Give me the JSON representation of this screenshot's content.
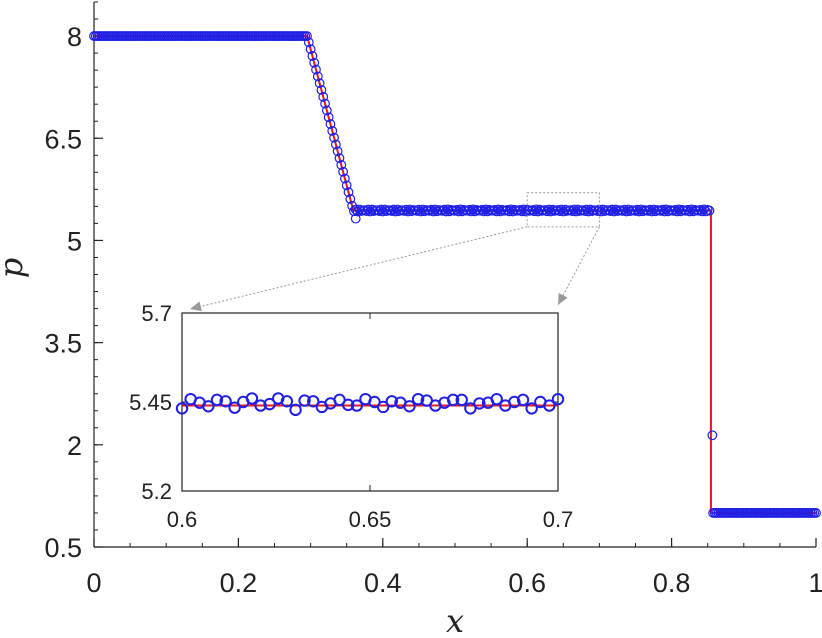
{
  "chart_data": [
    {
      "type": "line",
      "xlabel": "x",
      "ylabel": "p",
      "xlim": [
        0,
        1
      ],
      "ylim": [
        0.5,
        8.5
      ],
      "xticks": [
        0,
        0.2,
        0.4,
        0.6,
        0.8,
        1
      ],
      "xtick_labels": [
        "0",
        "0.2",
        "0.4",
        "0.6",
        "0.8",
        "1"
      ],
      "yticks": [
        0.5,
        2,
        3.5,
        5,
        6.5,
        8
      ],
      "ytick_labels": [
        "0.5",
        "2",
        "3.5",
        "5",
        "6.5",
        "8"
      ],
      "grid": false,
      "colors": {
        "reference": "#e8191f",
        "numerical": "#1f1fe6"
      },
      "series": [
        {
          "style": "red solid line (reference)",
          "x": [
            0,
            0.2952,
            0.3592,
            0.8545,
            0.8545,
            1
          ],
          "y": [
            8.0,
            8.0,
            5.44,
            5.44,
            1.0,
            1.0
          ]
        },
        {
          "style": "blue open circles (numerical)",
          "marker": "circle",
          "notable_points": [
            {
              "x": 0.3625,
              "y": 5.32
            },
            {
              "x": 0.8565,
              "y": 2.14
            }
          ],
          "note_fit": "markers follow the reference line; values near 5.45 oscillate slightly"
        }
      ]
    },
    {
      "type": "line",
      "inset": true,
      "xlim": [
        0.6,
        0.7
      ],
      "ylim": [
        5.2,
        5.7
      ],
      "xticks": [
        0.6,
        0.65,
        0.7
      ],
      "xtick_labels": [
        "0.6",
        "0.65",
        "0.7"
      ],
      "yticks": [
        5.2,
        5.45,
        5.7
      ],
      "ytick_labels": [
        "5.2",
        "5.45",
        "5.7"
      ],
      "zoom_region": {
        "x": [
          0.6,
          0.7
        ],
        "y": [
          5.2,
          5.7
        ]
      },
      "series": [
        {
          "style": "red solid line (reference)",
          "x": [
            0.6,
            0.7
          ],
          "y": [
            5.44,
            5.44
          ]
        },
        {
          "style": "blue open circles (numerical)",
          "marker": "circle",
          "x": [
            0.6,
            0.6023,
            0.6047,
            0.607,
            0.6093,
            0.6116,
            0.614,
            0.6163,
            0.6186,
            0.6209,
            0.6233,
            0.6256,
            0.6279,
            0.6302,
            0.6326,
            0.6349,
            0.6372,
            0.6395,
            0.6419,
            0.6442,
            0.6465,
            0.6488,
            0.6512,
            0.6535,
            0.6558,
            0.6581,
            0.6605,
            0.6628,
            0.6651,
            0.6674,
            0.6698,
            0.6721,
            0.6744,
            0.6767,
            0.6791,
            0.6814,
            0.6837,
            0.686,
            0.6884,
            0.6907,
            0.693,
            0.6953,
            0.6977,
            0.7
          ],
          "y": [
            5.432,
            5.458,
            5.448,
            5.438,
            5.456,
            5.452,
            5.434,
            5.45,
            5.46,
            5.44,
            5.444,
            5.46,
            5.452,
            5.428,
            5.454,
            5.452,
            5.436,
            5.446,
            5.456,
            5.442,
            5.44,
            5.458,
            5.45,
            5.436,
            5.452,
            5.448,
            5.438,
            5.458,
            5.454,
            5.44,
            5.448,
            5.456,
            5.456,
            5.432,
            5.446,
            5.448,
            5.458,
            5.44,
            5.45,
            5.456,
            5.432,
            5.45,
            5.44,
            5.458
          ]
        }
      ]
    }
  ]
}
